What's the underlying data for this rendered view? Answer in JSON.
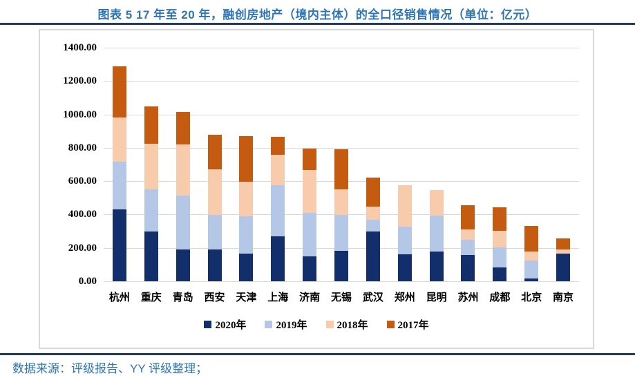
{
  "header": {
    "title": "图表 5 17 年至 20 年，融创房地产（境内主体）的全口径销售情况（单位：亿元）"
  },
  "footer": {
    "source": "数据来源：评级报告、YY 评级整理；"
  },
  "colors": {
    "accent_blue": "#2E75B6",
    "rule_navy": "#1F3864",
    "grid_gray": "#D9D9D9",
    "series_2020": "#132F6B",
    "series_2019": "#B4C7E7",
    "series_2018": "#F8CBAD",
    "series_2017": "#C55A11"
  },
  "chart_data": {
    "type": "bar",
    "stacked": true,
    "title": "图表 5 17 年至 20 年，融创房地产（境内主体）的全口径销售情况（单位：亿元）",
    "unit": "亿元",
    "categories": [
      "杭州",
      "重庆",
      "青岛",
      "西安",
      "天津",
      "上海",
      "济南",
      "无锡",
      "武汉",
      "郑州",
      "昆明",
      "苏州",
      "成都",
      "北京",
      "南京"
    ],
    "series": [
      {
        "name": "2020年",
        "color": "#132F6B",
        "values": [
          430,
          300,
          190,
          190,
          165,
          270,
          150,
          182,
          300,
          161,
          178,
          157,
          83,
          17,
          165
        ]
      },
      {
        "name": "2019年",
        "color": "#B4C7E7",
        "values": [
          285,
          250,
          322,
          207,
          224,
          305,
          260,
          215,
          68,
          166,
          215,
          93,
          120,
          107,
          0
        ]
      },
      {
        "name": "2018年",
        "color": "#F8CBAD",
        "values": [
          265,
          275,
          310,
          273,
          207,
          185,
          255,
          153,
          78,
          248,
          153,
          60,
          99,
          54,
          25
        ]
      },
      {
        "name": "2017年",
        "color": "#C55A11",
        "values": [
          310,
          225,
          194,
          210,
          272,
          105,
          130,
          240,
          176,
          0,
          0,
          145,
          143,
          153,
          66
        ]
      }
    ],
    "totals": [
      1290,
      1050,
      1016,
      880,
      868,
      865,
      795,
      790,
      622,
      575,
      546,
      455,
      445,
      331,
      256
    ],
    "ylim": [
      0,
      1400
    ],
    "ytick_step": 200,
    "ytick_labels": [
      "0.00",
      "200.00",
      "400.00",
      "600.00",
      "800.00",
      "1000.00",
      "1200.00",
      "1400.00"
    ],
    "grid": true,
    "legend_position": "bottom",
    "legend_entries": [
      "2020年",
      "2019年",
      "2018年",
      "2017年"
    ]
  }
}
